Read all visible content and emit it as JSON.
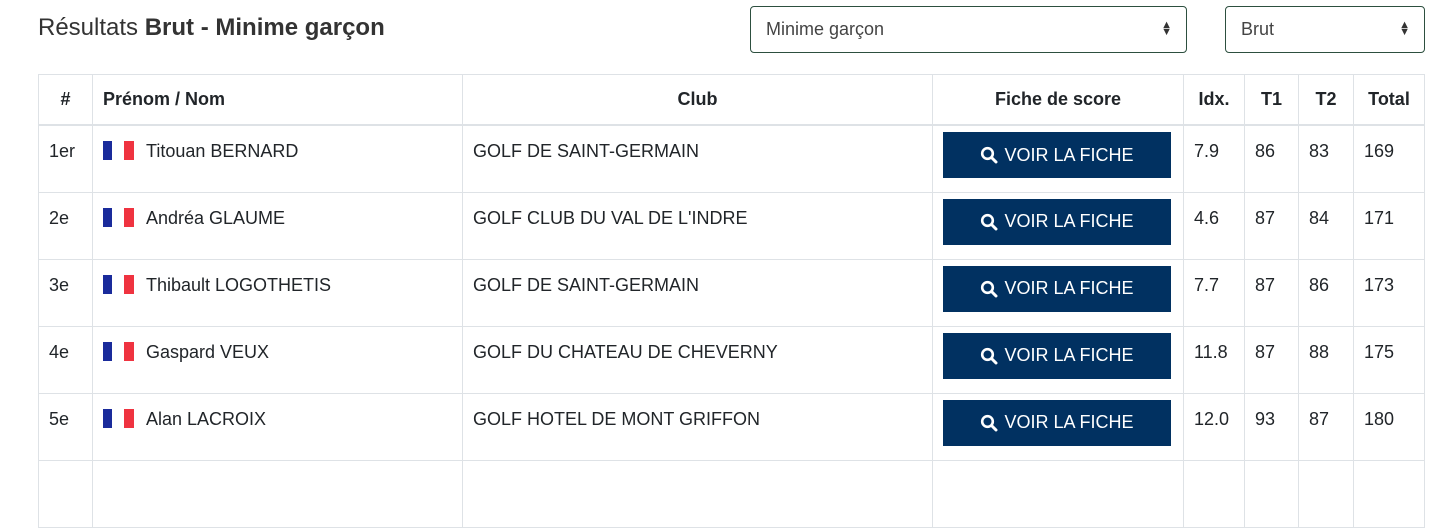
{
  "title": {
    "prefix": "Résultats",
    "bold": "Brut - Minime garçon"
  },
  "filters": {
    "category": "Minime garçon",
    "type": "Brut"
  },
  "table": {
    "headers": [
      "#",
      "Prénom / Nom",
      "Club",
      "Fiche de score",
      "Idx.",
      "T1",
      "T2",
      "Total"
    ],
    "button_label": "VOIR LA FICHE",
    "rows": [
      {
        "rank": "1er",
        "name": "Titouan BERNARD",
        "club": "GOLF DE SAINT-GERMAIN",
        "idx": "7.9",
        "t1": "86",
        "t2": "83",
        "total": "169"
      },
      {
        "rank": "2e",
        "name": "Andréa GLAUME",
        "club": "GOLF CLUB DU VAL DE L'INDRE",
        "idx": "4.6",
        "t1": "87",
        "t2": "84",
        "total": "171"
      },
      {
        "rank": "3e",
        "name": "Thibault LOGOTHETIS",
        "club": "GOLF DE SAINT-GERMAIN",
        "idx": "7.7",
        "t1": "87",
        "t2": "86",
        "total": "173"
      },
      {
        "rank": "4e",
        "name": "Gaspard VEUX",
        "club": "GOLF DU CHATEAU DE CHEVERNY",
        "idx": "11.8",
        "t1": "87",
        "t2": "88",
        "total": "175"
      },
      {
        "rank": "5e",
        "name": "Alan LACROIX",
        "club": "GOLF HOTEL DE MONT GRIFFON",
        "idx": "12.0",
        "t1": "93",
        "t2": "87",
        "total": "180"
      }
    ]
  },
  "colors": {
    "button": "#013161",
    "flag_blue": "#1a2b9b",
    "flag_red": "#ef3340"
  }
}
